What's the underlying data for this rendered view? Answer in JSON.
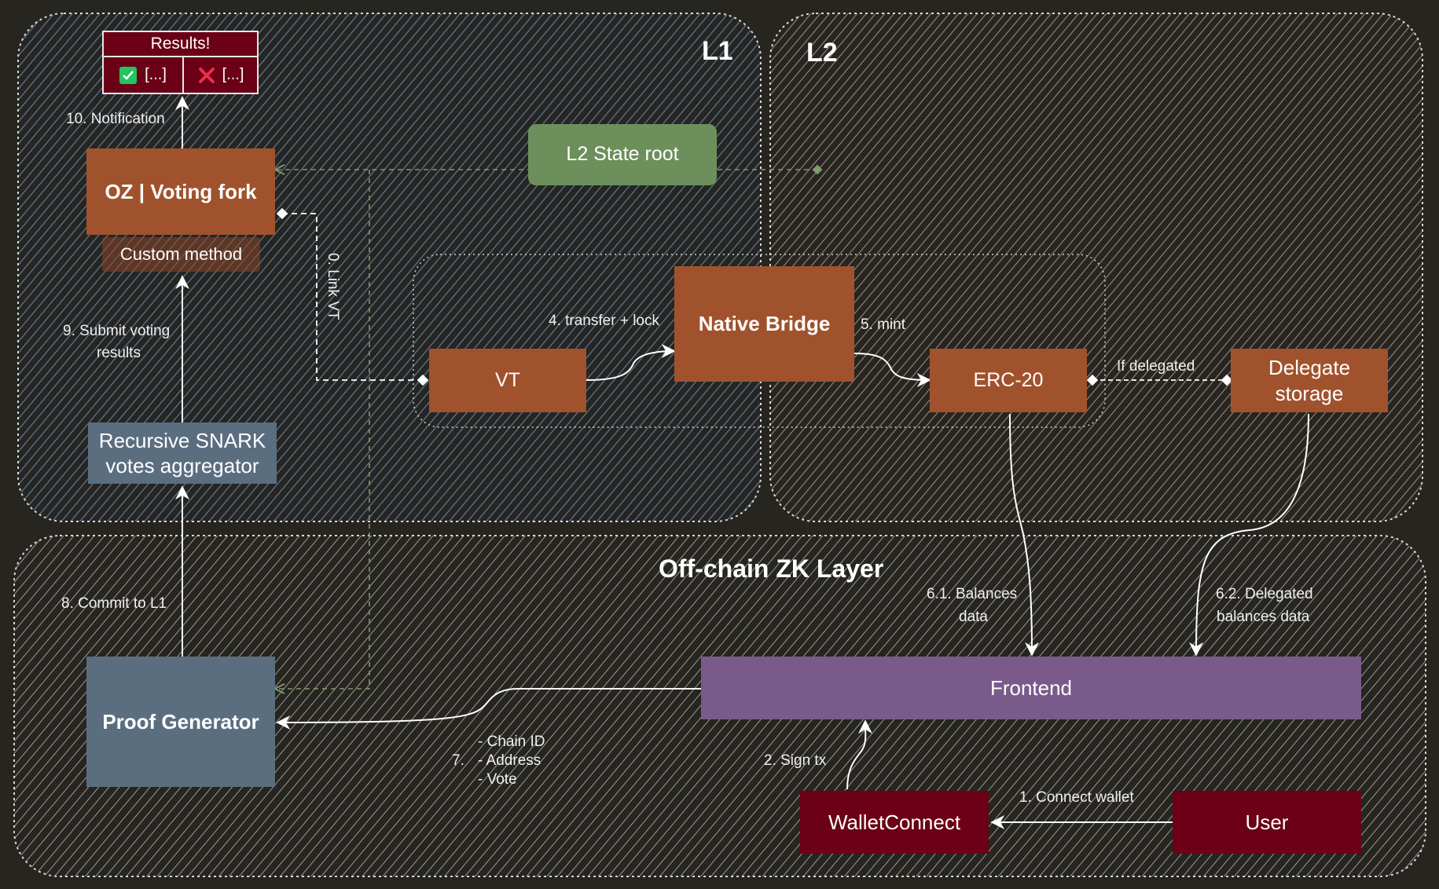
{
  "regions": {
    "l1": "L1",
    "l2": "L2",
    "offchain": "Off-chain ZK Layer"
  },
  "results": {
    "title": "Results!",
    "yes": "[...]",
    "no": "[...]"
  },
  "boxes": {
    "oz_voting_fork": "OZ | Voting fork",
    "custom_method": "Custom method",
    "l2_state_root": "L2 State root",
    "native_bridge": "Native Bridge",
    "vt": "VT",
    "erc20": "ERC-20",
    "delegate_storage": "Delegate storage",
    "recursive_snark": "Recursive SNARK votes aggregator",
    "proof_generator": "Proof Generator",
    "frontend": "Frontend",
    "walletconnect": "WalletConnect",
    "user": "User"
  },
  "edges": {
    "notification": "10. Notification",
    "submit_voting_line1": "9. Submit voting",
    "submit_voting_line2": "results",
    "link_vt": "0. Link VT",
    "transfer_lock": "4. transfer + lock",
    "mint": "5. mint",
    "if_delegated": "If delegated",
    "commit_l1": "8. Commit to L1",
    "balances_line1": "6.1. Balances",
    "balances_line2": "data",
    "delegated_line1": "6.2. Delegated",
    "delegated_line2": "balances data",
    "sign_tx": "2. Sign tx",
    "connect_wallet": "1. Connect wallet",
    "step7_num": "7.",
    "step7_chain": "- Chain ID",
    "step7_address": "- Address",
    "step7_vote": "- Vote"
  },
  "colors": {
    "background": "#27251f",
    "l1_hatch": "#5a7aa8",
    "l2_hatch": "#9a8680",
    "offchain_hatch": "#aaaaaa",
    "orange_box": "#a0522d",
    "state_root": "#6d8f5c",
    "frontend": "#7a5a8a",
    "proof_generator": "#5b6e80",
    "crimson": "#6b0016",
    "check": "#22c55e",
    "cross": "#ef2d4a"
  }
}
